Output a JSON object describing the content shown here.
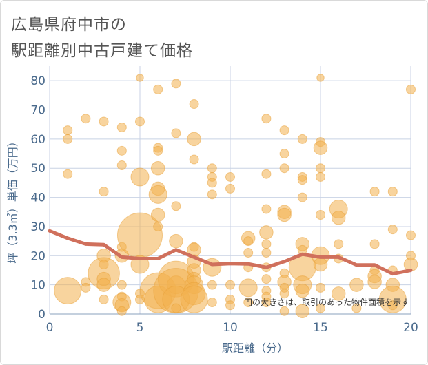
{
  "title_line1": "広島県府中市の",
  "title_line2": "駅距離別中古戸建て価格",
  "colors": {
    "bubble": "#f2b04e",
    "bubble_stroke": "#e8a035",
    "line": "#d0705c",
    "grid": "#c8d2e4",
    "tick": "#4a6a8c"
  },
  "chart_data": {
    "type": "scatter",
    "xlabel": "駅距離（分）",
    "ylabel": "坪（3.3㎡）単価（万円）",
    "xlim": [
      0,
      20
    ],
    "ylim": [
      0,
      85
    ],
    "xticks": [
      0,
      5,
      10,
      15,
      20
    ],
    "yticks": [
      0,
      10,
      20,
      30,
      40,
      50,
      60,
      70,
      80
    ],
    "note": "円の大きさは、取引のあった物件面積を示す",
    "trend": {
      "x": [
        0,
        1,
        2,
        3,
        4,
        5,
        6,
        7,
        8,
        9,
        10,
        11,
        12,
        13,
        14,
        15,
        16,
        17,
        18,
        19,
        20
      ],
      "y": [
        28.5,
        26,
        24,
        23.8,
        19.5,
        19,
        19,
        22,
        19.5,
        17,
        17.3,
        17.2,
        16,
        18,
        20.5,
        19.5,
        19.5,
        16.8,
        16.8,
        13.8,
        15
      ]
    },
    "points": [
      {
        "x": 1,
        "y": 63,
        "s": 1
      },
      {
        "x": 1,
        "y": 60,
        "s": 1
      },
      {
        "x": 1,
        "y": 48,
        "s": 1
      },
      {
        "x": 1,
        "y": 8,
        "s": 3
      },
      {
        "x": 2,
        "y": 67,
        "s": 1
      },
      {
        "x": 2,
        "y": 11,
        "s": 1
      },
      {
        "x": 2,
        "y": 9,
        "s": 1
      },
      {
        "x": 3,
        "y": 66,
        "s": 1
      },
      {
        "x": 3,
        "y": 42,
        "s": 1
      },
      {
        "x": 3,
        "y": 20,
        "s": 1.5
      },
      {
        "x": 3,
        "y": 17,
        "s": 1
      },
      {
        "x": 3,
        "y": 14,
        "s": 3.5
      },
      {
        "x": 3,
        "y": 12,
        "s": 1.5
      },
      {
        "x": 3,
        "y": 10,
        "s": 1.5
      },
      {
        "x": 3,
        "y": 5,
        "s": 1
      },
      {
        "x": 4,
        "y": 64,
        "s": 1
      },
      {
        "x": 4,
        "y": 56,
        "s": 1
      },
      {
        "x": 4,
        "y": 51,
        "s": 1
      },
      {
        "x": 4,
        "y": 23,
        "s": 1
      },
      {
        "x": 4,
        "y": 20,
        "s": 1.5
      },
      {
        "x": 4,
        "y": 10,
        "s": 1
      },
      {
        "x": 4,
        "y": 6,
        "s": 1
      },
      {
        "x": 4,
        "y": 4,
        "s": 2
      },
      {
        "x": 4,
        "y": 3,
        "s": 1.5
      },
      {
        "x": 4,
        "y": 1,
        "s": 1
      },
      {
        "x": 5,
        "y": 81,
        "s": 0.8
      },
      {
        "x": 5,
        "y": 66,
        "s": 1
      },
      {
        "x": 5,
        "y": 47,
        "s": 2
      },
      {
        "x": 5,
        "y": 27,
        "s": 5
      },
      {
        "x": 5,
        "y": 17,
        "s": 2
      },
      {
        "x": 5,
        "y": 7,
        "s": 1
      },
      {
        "x": 5,
        "y": 5,
        "s": 1
      },
      {
        "x": 6,
        "y": 77,
        "s": 1
      },
      {
        "x": 6,
        "y": 57,
        "s": 1
      },
      {
        "x": 6,
        "y": 56,
        "s": 1
      },
      {
        "x": 6,
        "y": 50,
        "s": 1.5
      },
      {
        "x": 6,
        "y": 43,
        "s": 1.5
      },
      {
        "x": 6,
        "y": 41,
        "s": 2
      },
      {
        "x": 6,
        "y": 34,
        "s": 1.5
      },
      {
        "x": 6,
        "y": 30,
        "s": 1
      },
      {
        "x": 6,
        "y": 8,
        "s": 4
      },
      {
        "x": 6,
        "y": 5,
        "s": 3
      },
      {
        "x": 7,
        "y": 79,
        "s": 1
      },
      {
        "x": 7,
        "y": 62,
        "s": 1
      },
      {
        "x": 7,
        "y": 37,
        "s": 1
      },
      {
        "x": 7,
        "y": 25,
        "s": 1.5
      },
      {
        "x": 7,
        "y": 12,
        "s": 4
      },
      {
        "x": 7,
        "y": 10,
        "s": 2
      },
      {
        "x": 7,
        "y": 8,
        "s": 5
      },
      {
        "x": 7,
        "y": 5,
        "s": 3
      },
      {
        "x": 7,
        "y": 2,
        "s": 1
      },
      {
        "x": 8,
        "y": 72,
        "s": 1
      },
      {
        "x": 8,
        "y": 60,
        "s": 1.5
      },
      {
        "x": 8,
        "y": 53,
        "s": 1
      },
      {
        "x": 8,
        "y": 23,
        "s": 1
      },
      {
        "x": 8,
        "y": 22,
        "s": 1.5
      },
      {
        "x": 8,
        "y": 18,
        "s": 1.5
      },
      {
        "x": 8,
        "y": 15,
        "s": 1.5
      },
      {
        "x": 8,
        "y": 12,
        "s": 1.5
      },
      {
        "x": 8,
        "y": 10,
        "s": 2
      },
      {
        "x": 8,
        "y": 7,
        "s": 2.5
      },
      {
        "x": 8,
        "y": 5,
        "s": 3
      },
      {
        "x": 9,
        "y": 50,
        "s": 1
      },
      {
        "x": 9,
        "y": 47,
        "s": 1
      },
      {
        "x": 9,
        "y": 45,
        "s": 1
      },
      {
        "x": 9,
        "y": 41,
        "s": 1
      },
      {
        "x": 9,
        "y": 16,
        "s": 2
      },
      {
        "x": 9,
        "y": 10,
        "s": 1
      },
      {
        "x": 9,
        "y": 4,
        "s": 1
      },
      {
        "x": 10,
        "y": 47,
        "s": 1
      },
      {
        "x": 10,
        "y": 43,
        "s": 1
      },
      {
        "x": 10,
        "y": 10,
        "s": 1
      },
      {
        "x": 10,
        "y": 5,
        "s": 1
      },
      {
        "x": 10,
        "y": 3,
        "s": 1
      },
      {
        "x": 11,
        "y": 26,
        "s": 1.5
      },
      {
        "x": 11,
        "y": 25,
        "s": 1
      },
      {
        "x": 11,
        "y": 21,
        "s": 1
      },
      {
        "x": 11,
        "y": 16,
        "s": 1
      },
      {
        "x": 11,
        "y": 9,
        "s": 2
      },
      {
        "x": 11,
        "y": 4,
        "s": 1
      },
      {
        "x": 12,
        "y": 67,
        "s": 1
      },
      {
        "x": 12,
        "y": 48,
        "s": 1
      },
      {
        "x": 12,
        "y": 36,
        "s": 1
      },
      {
        "x": 12,
        "y": 28,
        "s": 1.5
      },
      {
        "x": 12,
        "y": 24,
        "s": 1
      },
      {
        "x": 12,
        "y": 21,
        "s": 1
      },
      {
        "x": 12,
        "y": 16,
        "s": 1
      },
      {
        "x": 12,
        "y": 12,
        "s": 1
      },
      {
        "x": 12,
        "y": 8,
        "s": 1
      },
      {
        "x": 12,
        "y": 6,
        "s": 1
      },
      {
        "x": 12,
        "y": 4,
        "s": 1
      },
      {
        "x": 13,
        "y": 63,
        "s": 1
      },
      {
        "x": 13,
        "y": 55,
        "s": 1
      },
      {
        "x": 13,
        "y": 50,
        "s": 1
      },
      {
        "x": 13,
        "y": 35,
        "s": 1.5
      },
      {
        "x": 13,
        "y": 34,
        "s": 1.5
      },
      {
        "x": 13,
        "y": 14,
        "s": 1
      },
      {
        "x": 13,
        "y": 11,
        "s": 1.5
      },
      {
        "x": 13,
        "y": 9,
        "s": 1
      },
      {
        "x": 13,
        "y": 7,
        "s": 1
      },
      {
        "x": 13,
        "y": 1,
        "s": 1
      },
      {
        "x": 14,
        "y": 60,
        "s": 1
      },
      {
        "x": 14,
        "y": 47,
        "s": 1
      },
      {
        "x": 14,
        "y": 46,
        "s": 1
      },
      {
        "x": 14,
        "y": 40,
        "s": 1
      },
      {
        "x": 14,
        "y": 24,
        "s": 1.5
      },
      {
        "x": 14,
        "y": 22,
        "s": 1
      },
      {
        "x": 14,
        "y": 16,
        "s": 3
      },
      {
        "x": 14,
        "y": 10,
        "s": 2
      },
      {
        "x": 14,
        "y": 8,
        "s": 1.5
      },
      {
        "x": 14,
        "y": 1,
        "s": 1.5
      },
      {
        "x": 15,
        "y": 81,
        "s": 0.8
      },
      {
        "x": 15,
        "y": 59,
        "s": 1
      },
      {
        "x": 15,
        "y": 57,
        "s": 1.5
      },
      {
        "x": 15,
        "y": 50,
        "s": 1
      },
      {
        "x": 15,
        "y": 47,
        "s": 1
      },
      {
        "x": 15,
        "y": 34,
        "s": 1
      },
      {
        "x": 15,
        "y": 20,
        "s": 2
      },
      {
        "x": 15,
        "y": 17,
        "s": 1.5
      },
      {
        "x": 15,
        "y": 9,
        "s": 1
      },
      {
        "x": 15,
        "y": 2,
        "s": 1
      },
      {
        "x": 16,
        "y": 36,
        "s": 2
      },
      {
        "x": 16,
        "y": 33,
        "s": 1.5
      },
      {
        "x": 16,
        "y": 24,
        "s": 1
      },
      {
        "x": 16,
        "y": 19,
        "s": 1
      },
      {
        "x": 16,
        "y": 7,
        "s": 1.5
      },
      {
        "x": 17,
        "y": 10,
        "s": 1.5
      },
      {
        "x": 17,
        "y": 2,
        "s": 1
      },
      {
        "x": 18,
        "y": 42,
        "s": 1
      },
      {
        "x": 18,
        "y": 24,
        "s": 1
      },
      {
        "x": 18,
        "y": 15,
        "s": 1
      },
      {
        "x": 18,
        "y": 13,
        "s": 1.5
      },
      {
        "x": 18,
        "y": 11,
        "s": 1.5
      },
      {
        "x": 19,
        "y": 42,
        "s": 1
      },
      {
        "x": 19,
        "y": 29,
        "s": 1
      },
      {
        "x": 19,
        "y": 15,
        "s": 1
      },
      {
        "x": 19,
        "y": 10,
        "s": 1.5
      },
      {
        "x": 19,
        "y": 5,
        "s": 3
      },
      {
        "x": 19,
        "y": 3,
        "s": 1
      },
      {
        "x": 20,
        "y": 77,
        "s": 1
      },
      {
        "x": 20,
        "y": 27,
        "s": 1
      },
      {
        "x": 20,
        "y": 20,
        "s": 1
      },
      {
        "x": 20,
        "y": 17,
        "s": 1.5
      }
    ]
  }
}
